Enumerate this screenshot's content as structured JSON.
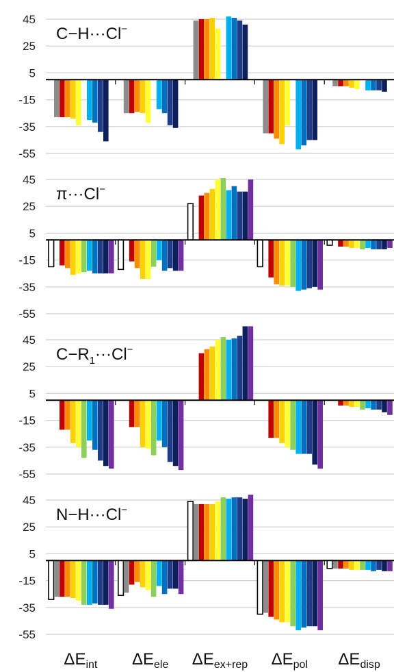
{
  "chart_data": {
    "type": "bar",
    "categories": [
      "int",
      "ele",
      "ex+rep",
      "pol",
      "disp"
    ],
    "category_labels": [
      {
        "main": "ΔE",
        "sub": "int"
      },
      {
        "main": "ΔE",
        "sub": "ele"
      },
      {
        "main": "ΔE",
        "sub": "ex+rep"
      },
      {
        "main": "ΔE",
        "sub": "pol"
      },
      {
        "main": "ΔE",
        "sub": "disp"
      }
    ],
    "ylim": [
      -55,
      45
    ],
    "yticks": [
      45,
      25,
      5,
      -15,
      -35,
      -55
    ],
    "grid": true,
    "series_colors": [
      "#ffffff",
      "#8c8c8c",
      "#c00000",
      "#ff8c00",
      "#ffd000",
      "#ffff33",
      "#8ccf5a",
      "#00b0f0",
      "#0070c0",
      "#1f3c88",
      "#0d1f5c",
      "#7030a0"
    ],
    "panels": [
      {
        "title": {
          "pre": "C−H···Cl",
          "sub": "",
          "post": "",
          "sup": "−"
        },
        "values": [
          [
            null,
            -28,
            -28,
            -28,
            -29,
            -34,
            null,
            -30,
            -32,
            -39,
            -46,
            null
          ],
          [
            null,
            -25,
            -25,
            -24,
            -25,
            -32,
            null,
            -22,
            -25,
            -34,
            -36,
            null
          ],
          [
            null,
            44,
            45,
            45,
            46,
            38,
            null,
            47,
            46,
            44,
            41,
            null
          ],
          [
            null,
            -40,
            -40,
            -44,
            -48,
            -34,
            null,
            -52,
            -49,
            -45,
            -45,
            null
          ],
          [
            null,
            -5,
            -5,
            -5,
            -6,
            -7,
            null,
            -8,
            -8,
            -8,
            -9,
            null
          ]
        ]
      },
      {
        "title": {
          "pre": "π···Cl",
          "sub": "",
          "post": "",
          "sup": "−"
        },
        "values": [
          [
            -20,
            null,
            -19,
            -21,
            -26,
            -25,
            -24,
            -23,
            -25,
            -25,
            -25,
            -25
          ],
          [
            -22,
            null,
            -16,
            -21,
            -29,
            -29,
            -20,
            -15,
            -23,
            -21,
            -23,
            -23
          ],
          [
            27,
            null,
            33,
            35,
            38,
            45,
            46,
            37,
            40,
            36,
            36,
            45
          ],
          [
            -20,
            null,
            -28,
            -33,
            -34,
            -34,
            -35,
            -38,
            -37,
            -36,
            -35,
            -37
          ],
          [
            -4,
            null,
            -5,
            -5,
            -6,
            -6,
            -7,
            -6,
            -7,
            -7,
            -7,
            -6
          ]
        ]
      },
      {
        "title": {
          "pre": "C−R",
          "sub": "1",
          "post": "···Cl",
          "sup": "−"
        },
        "values": [
          [
            null,
            null,
            -22,
            -22,
            -32,
            -35,
            -43,
            -30,
            -37,
            -45,
            -49,
            -51
          ],
          [
            null,
            null,
            -20,
            -20,
            -35,
            -36,
            -41,
            -30,
            -35,
            -46,
            -49,
            -52
          ],
          [
            null,
            null,
            35,
            38,
            40,
            45,
            47,
            45,
            46,
            48,
            55,
            55
          ],
          [
            null,
            null,
            -28,
            -28,
            -32,
            -35,
            -37,
            -40,
            -40,
            -40,
            -48,
            -51
          ],
          [
            null,
            null,
            -4,
            -4,
            -5,
            -5,
            -7,
            -6,
            -7,
            -7,
            -9,
            -11
          ]
        ]
      },
      {
        "title": {
          "pre": "N−H···Cl",
          "sub": "",
          "post": "",
          "sup": "−"
        },
        "values": [
          [
            -29,
            -27,
            -27,
            -27,
            -28,
            -30,
            -33,
            -33,
            -32,
            -33,
            -33,
            -36
          ],
          [
            -26,
            -24,
            -18,
            -16,
            -20,
            -22,
            -27,
            -19,
            -25,
            -21,
            -21,
            -25
          ],
          [
            44,
            42,
            42,
            42,
            42,
            44,
            47,
            46,
            47,
            47,
            46,
            49
          ],
          [
            -40,
            -39,
            -42,
            -44,
            -46,
            -46,
            -49,
            -52,
            -50,
            -49,
            -49,
            -52
          ],
          [
            -6,
            -6,
            -6,
            -6,
            -7,
            -7,
            -7,
            -7,
            -8,
            -7,
            -8,
            -8
          ]
        ]
      }
    ]
  }
}
